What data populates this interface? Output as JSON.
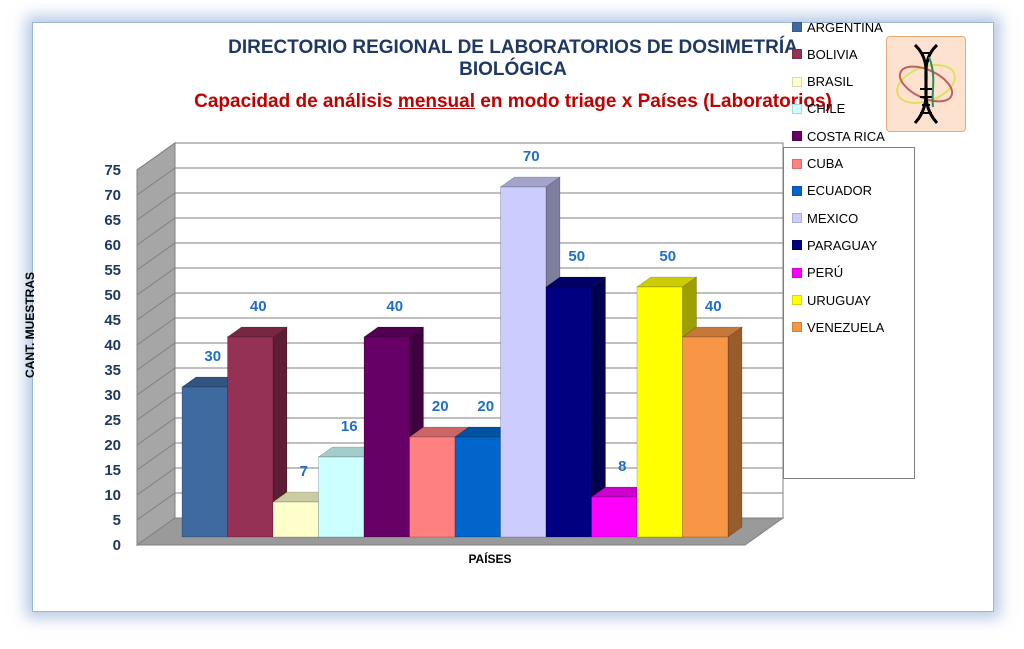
{
  "title": {
    "line1": "DIRECTORIO REGIONAL DE LABORATORIOS  DE DOSIMETRÍA",
    "line2": "BIOLÓGICA",
    "subtitle_pre": "Capacidad de análisis ",
    "subtitle_underlined": "mensual",
    "subtitle_post": "  en modo triage x Países (Laboratorios)"
  },
  "logo_icon": "dna-icon",
  "chart_data": {
    "type": "bar",
    "categories": [
      "ARGENTINA",
      "BOLIVIA",
      "BRASIL",
      "CHILE",
      "COSTA RICA",
      "CUBA",
      "ECUADOR",
      "MEXICO",
      "PARAGUAY",
      "PERÚ",
      "URUGUAY",
      "VENEZUELA"
    ],
    "values": [
      30,
      40,
      7,
      16,
      40,
      20,
      20,
      70,
      50,
      8,
      50,
      40
    ],
    "colors": [
      "#3f6aa0",
      "#953155",
      "#ffffcc",
      "#ccffff",
      "#660066",
      "#ff8080",
      "#0066cc",
      "#ccccff",
      "#000080",
      "#ff00ff",
      "#ffff00",
      "#f79646"
    ],
    "ylabel": "CANT. MUESTRAS",
    "xlabel": "PAÍSES",
    "ylim": [
      0,
      75
    ],
    "yticks": [
      0,
      5,
      10,
      15,
      20,
      25,
      30,
      35,
      40,
      45,
      50,
      55,
      60,
      65,
      70,
      75
    ],
    "legend_position": "right",
    "grid": true,
    "three_d": true
  }
}
